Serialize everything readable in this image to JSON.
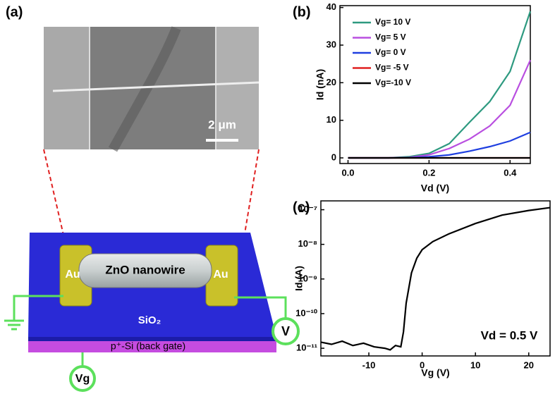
{
  "diagram": {
    "panel_label": "(a)",
    "scale_bar": "2 μm",
    "left_pad": "Au",
    "right_pad": "Au",
    "nanowire": "ZnO nanowire",
    "oxide": "SiO₂",
    "gate": "p⁺-Si (back gate)",
    "gate_probe": "Vg",
    "drain_probe": "V"
  },
  "chart_data": [
    {
      "type": "line",
      "panel_label": "(b)",
      "x_label": "Vd (V)",
      "y_label": "Id (nA)",
      "x": [
        0,
        0.05,
        0.1,
        0.15,
        0.2,
        0.25,
        0.3,
        0.35,
        0.4,
        0.45
      ],
      "series": [
        {
          "name": "Vg= 10 V",
          "color": "#2e9a80",
          "values": [
            0,
            0,
            0,
            0.3,
            1.2,
            3.8,
            9.5,
            15,
            23,
            39
          ]
        },
        {
          "name": "Vg=  5 V",
          "color": "#b94fe0",
          "values": [
            0,
            0,
            0,
            0.1,
            0.8,
            2.5,
            5,
            8.5,
            14,
            26
          ]
        },
        {
          "name": "Vg=  0 V",
          "color": "#1f3fe0",
          "values": [
            0,
            0,
            0,
            0.05,
            0.3,
            0.8,
            1.8,
            3,
            4.5,
            6.8
          ]
        },
        {
          "name": "Vg= -5 V",
          "color": "#e02020",
          "values": [
            0,
            0,
            0,
            0,
            0,
            0,
            0,
            0,
            0,
            0
          ]
        },
        {
          "name": "Vg=-10 V",
          "color": "#000000",
          "values": [
            0,
            0,
            0,
            0,
            0,
            0,
            0,
            0,
            0,
            0
          ]
        }
      ],
      "xlim": [
        -0.02,
        0.45
      ],
      "ylim": [
        -1.5,
        40.5
      ],
      "xticks": [
        {
          "value": 0,
          "label": "0.0"
        },
        0.2,
        0.4
      ],
      "yticks": [
        0,
        10,
        20,
        30,
        40
      ],
      "legend": "upper-left"
    },
    {
      "type": "line",
      "panel_label": "(c)",
      "x_label": "Vg (V)",
      "y_label": "Id (A)",
      "annotation": "Vd = 0.5 V",
      "log_y": true,
      "x": [
        -19,
        -17,
        -15,
        -13,
        -11,
        -9,
        -7,
        -6,
        -5,
        -4,
        -3.5,
        -3,
        -2,
        -1,
        0,
        2,
        5,
        10,
        15,
        20,
        24
      ],
      "series": [
        {
          "name": null,
          "color": "#000000",
          "values": [
            1.5e-11,
            1.3e-11,
            1.6e-11,
            1.2e-11,
            1.4e-11,
            1.1e-11,
            1e-11,
            9e-12,
            1.2e-11,
            1.1e-11,
            3e-11,
            2e-10,
            1.5e-09,
            4e-09,
            7e-09,
            1.2e-08,
            2e-08,
            4e-08,
            7e-08,
            9.5e-08,
            1.15e-07
          ]
        }
      ],
      "xlim": [
        -19,
        24
      ],
      "ylim": [
        6e-12,
        1.8e-07
      ],
      "xticks": [
        -10,
        0,
        10,
        20
      ],
      "yticks": [
        {
          "value": 1e-11,
          "label": "10⁻¹¹"
        },
        {
          "value": 1e-10,
          "label": "10⁻¹⁰"
        },
        {
          "value": 1e-09,
          "label": "10⁻⁹"
        },
        {
          "value": 1e-08,
          "label": "10⁻⁸"
        },
        {
          "value": 1e-07,
          "label": "10⁻⁷"
        }
      ]
    }
  ]
}
